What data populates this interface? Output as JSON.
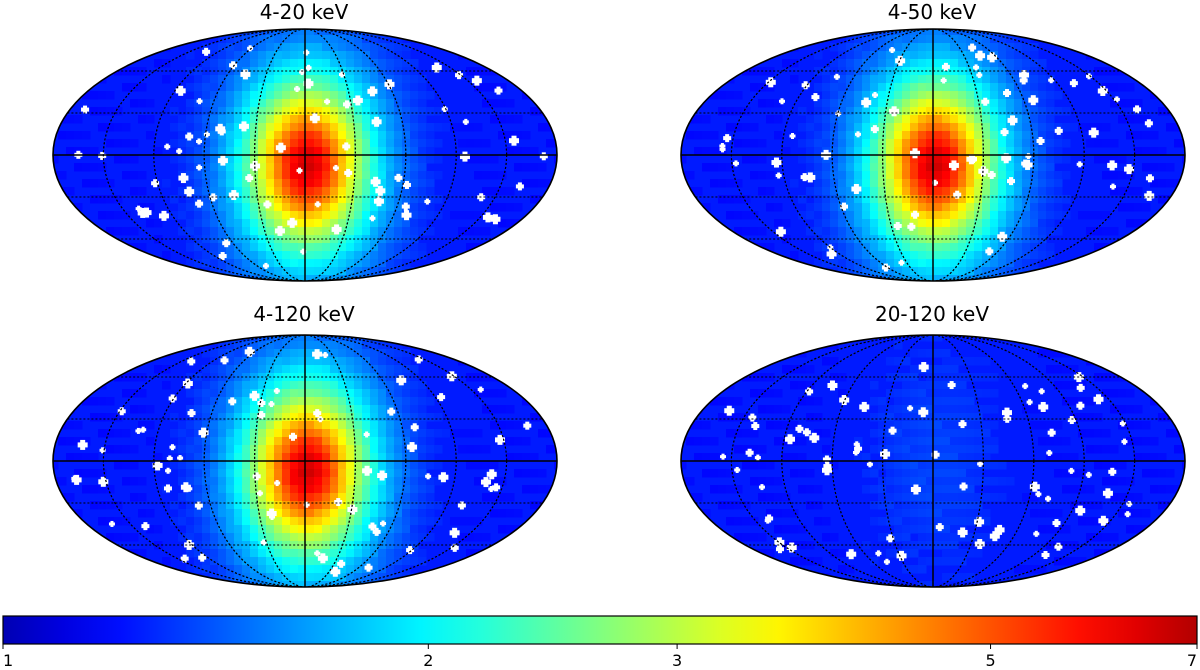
{
  "chart_data": [
    {
      "type": "heatmap",
      "title": "4-20 keV",
      "projection": "mollweide",
      "hotspot_strength": 1.0
    },
    {
      "type": "heatmap",
      "title": "4-50 keV",
      "projection": "mollweide",
      "hotspot_strength": 1.0
    },
    {
      "type": "heatmap",
      "title": "4-120 keV",
      "projection": "mollweide",
      "hotspot_strength": 1.0
    },
    {
      "type": "heatmap",
      "title": "20-120 keV",
      "projection": "mollweide",
      "hotspot_strength": 0.1
    }
  ],
  "colorbar": {
    "colormap": "jet",
    "scale": "log",
    "range": [
      1,
      7
    ],
    "ticks": [
      {
        "value": 1,
        "label": "1"
      },
      {
        "value": 2,
        "label": "2"
      },
      {
        "value": 3,
        "label": "3"
      },
      {
        "value": 5,
        "label": "5"
      },
      {
        "value": 7,
        "label": "7"
      }
    ]
  },
  "colors": {
    "hole": "#ffffff",
    "grid": "#000000"
  }
}
